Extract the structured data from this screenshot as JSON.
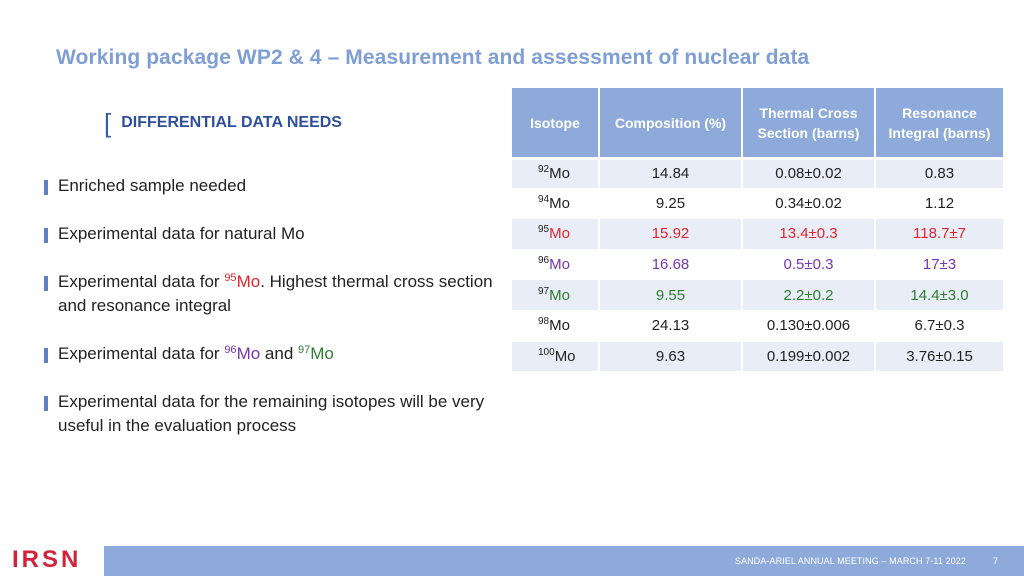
{
  "header": {
    "title": "Working package WP2 & 4 – Measurement and assessment of nuclear data"
  },
  "section": {
    "label": "DIFFERENTIAL DATA NEEDS"
  },
  "bullets": {
    "b1": "Enriched sample needed",
    "b2": "Experimental data for natural Mo",
    "b3": {
      "prefix": "Experimental data for ",
      "sup": "95",
      "iso": "Mo",
      "suffix": ". Highest thermal cross section and resonance integral"
    },
    "b4": {
      "prefix": "Experimental data for ",
      "sup1": "96",
      "iso1": "Mo",
      "mid": " and ",
      "sup2": "97",
      "iso2": "Mo"
    },
    "b5": "Experimental data for the remaining isotopes will be very useful in the evaluation process"
  },
  "table": {
    "headers": [
      "Isotope",
      "Composition (%)",
      "Thermal Cross Section (barns)",
      "Resonance Integral (barns)"
    ],
    "rows": [
      {
        "mass": "92",
        "el": "Mo",
        "comp": "14.84",
        "thermal": "0.08±0.02",
        "res": "0.83",
        "color": ""
      },
      {
        "mass": "94",
        "el": "Mo",
        "comp": "9.25",
        "thermal": "0.34±0.02",
        "res": "1.12",
        "color": ""
      },
      {
        "mass": "95",
        "el": "Mo",
        "comp": "15.92",
        "thermal": "13.4±0.3",
        "res": "118.7±7",
        "color": "#e0262c"
      },
      {
        "mass": "96",
        "el": "Mo",
        "comp": "16.68",
        "thermal": "0.5±0.3",
        "res": "17±3",
        "color": "#7a35b0"
      },
      {
        "mass": "97",
        "el": "Mo",
        "comp": "9.55",
        "thermal": "2.2±0.2",
        "res": "14.4±3.0",
        "color": "#2f7d32"
      },
      {
        "mass": "98",
        "el": "Mo",
        "comp": "24.13",
        "thermal": "0.130±0.006",
        "res": "6.7±0.3",
        "color": ""
      },
      {
        "mass": "100",
        "el": "Mo",
        "comp": "9.63",
        "thermal": "0.199±0.002",
        "res": "3.76±0.15",
        "color": ""
      }
    ]
  },
  "footer": {
    "meeting": "SANDA-ARIEL ANNUAL MEETING – MARCH 7-11 2022",
    "page": "7",
    "logo": "IRSN"
  }
}
